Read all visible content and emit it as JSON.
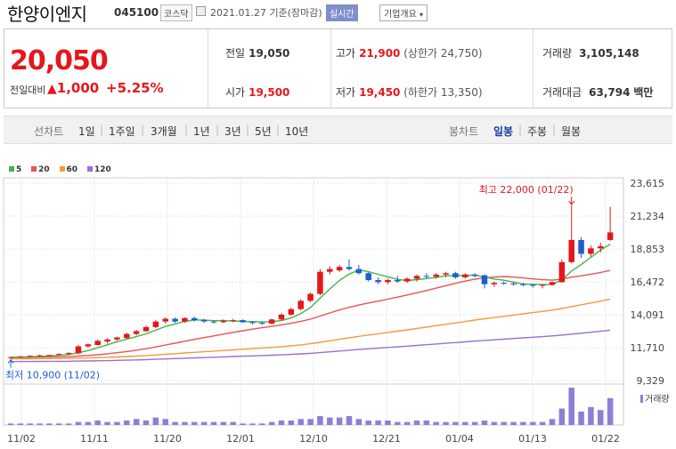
{
  "header": {
    "name": "한양이엔지",
    "code": "045100",
    "market": "코스닥",
    "date": "2021.01.27 기준(장마감)",
    "realtime": "실시간",
    "company_info": "기업개요"
  },
  "quote": {
    "price": "20,050",
    "change_label": "전일대비",
    "change_value": "1,000",
    "change_pct": "+5.25%",
    "prev_close_label": "전일",
    "prev_close": "19,050",
    "open_label": "시가",
    "open": "19,500",
    "high_label": "고가",
    "high": "21,900",
    "upper_limit": "(상한가 24,750)",
    "low_label": "저가",
    "low": "19,450",
    "lower_limit": "(하한가 13,350)",
    "volume_label": "거래량",
    "volume": "3,105,148",
    "amount_label": "거래대금",
    "amount": "63,794",
    "amount_unit": "백만"
  },
  "period_tabs": {
    "label": "선차트",
    "items": [
      "1일",
      "1주일",
      "3개월",
      "1년",
      "3년",
      "5년",
      "10년"
    ],
    "candle_label": "봉차트",
    "candle_items": [
      "일봉",
      "주봉",
      "월봉"
    ],
    "selected": "일봉"
  },
  "colors": {
    "up": "#e4171c",
    "down": "#1a5fd1",
    "ma5": "#43b543",
    "ma20": "#e85353",
    "ma60": "#f29a3a",
    "ma120": "#9a6fd0",
    "volume": "#8c7fd6"
  },
  "chart_data": {
    "type": "candlestick",
    "ma_legend": [
      "5",
      "20",
      "60",
      "120"
    ],
    "y_ticks": [
      "23,615",
      "21,234",
      "18,853",
      "16,472",
      "14,091",
      "11,710",
      "9,329"
    ],
    "ylim": [
      9329,
      23615
    ],
    "x_ticks": [
      "11/02",
      "11/11",
      "11/20",
      "12/01",
      "12/10",
      "12/21",
      "01/04",
      "01/13",
      "01/22"
    ],
    "max_annotation": "최고 22,000 (01/22)",
    "min_annotation": "최저 10,900 (11/02)",
    "volume_label": "거래량",
    "candles": [
      [
        11000,
        11050,
        10900,
        11020
      ],
      [
        11020,
        11100,
        10980,
        11080
      ],
      [
        11080,
        11150,
        11050,
        11120
      ],
      [
        11120,
        11200,
        11080,
        11150
      ],
      [
        11150,
        11200,
        11100,
        11180
      ],
      [
        11180,
        11300,
        11150,
        11250
      ],
      [
        11250,
        11380,
        11200,
        11320
      ],
      [
        11300,
        11900,
        11250,
        11800
      ],
      [
        11800,
        12000,
        11700,
        11950
      ],
      [
        11900,
        12300,
        11850,
        12200
      ],
      [
        12150,
        12400,
        12000,
        12300
      ],
      [
        12300,
        12500,
        12200,
        12450
      ],
      [
        12400,
        12800,
        12350,
        12700
      ],
      [
        12700,
        13000,
        12600,
        12900
      ],
      [
        12900,
        13300,
        12850,
        13200
      ],
      [
        13200,
        13700,
        13100,
        13600
      ],
      [
        13600,
        13900,
        13450,
        13800
      ],
      [
        13800,
        13900,
        13500,
        13600
      ],
      [
        13600,
        13900,
        13500,
        13850
      ],
      [
        13850,
        13950,
        13600,
        13700
      ],
      [
        13700,
        13800,
        13500,
        13600
      ],
      [
        13600,
        13700,
        13450,
        13550
      ],
      [
        13550,
        13750,
        13500,
        13650
      ],
      [
        13650,
        13800,
        13550,
        13700
      ],
      [
        13700,
        13750,
        13500,
        13550
      ],
      [
        13550,
        13650,
        13400,
        13500
      ],
      [
        13500,
        13600,
        13350,
        13450
      ],
      [
        13450,
        13800,
        13400,
        13750
      ],
      [
        13750,
        14200,
        13700,
        14100
      ],
      [
        14100,
        14600,
        14000,
        14500
      ],
      [
        14500,
        15200,
        14400,
        15100
      ],
      [
        15100,
        15700,
        15000,
        15600
      ],
      [
        15600,
        17400,
        15500,
        17200
      ],
      [
        17200,
        17600,
        17000,
        17400
      ],
      [
        17300,
        17700,
        17200,
        17550
      ],
      [
        17550,
        18100,
        17300,
        17400
      ],
      [
        17400,
        17700,
        17000,
        17100
      ],
      [
        17100,
        17200,
        16500,
        16600
      ],
      [
        16600,
        16800,
        16300,
        16450
      ],
      [
        16450,
        16700,
        16300,
        16600
      ],
      [
        16600,
        16900,
        16400,
        16500
      ],
      [
        16500,
        16800,
        16400,
        16700
      ],
      [
        16700,
        17000,
        16500,
        16900
      ],
      [
        16900,
        17100,
        16700,
        16850
      ],
      [
        16850,
        17100,
        16700,
        17000
      ],
      [
        17000,
        17200,
        16800,
        17100
      ],
      [
        17100,
        17200,
        16700,
        16800
      ],
      [
        16800,
        17100,
        16700,
        17000
      ],
      [
        17000,
        17100,
        16800,
        16900
      ],
      [
        16950,
        17000,
        16000,
        16300
      ],
      [
        16300,
        16500,
        16100,
        16400
      ],
      [
        16400,
        16500,
        16250,
        16350
      ],
      [
        16350,
        16450,
        16200,
        16300
      ],
      [
        16300,
        16400,
        16150,
        16250
      ],
      [
        16250,
        16350,
        16050,
        16200
      ],
      [
        16200,
        16300,
        16000,
        16250
      ],
      [
        16250,
        16500,
        16200,
        16450
      ],
      [
        16450,
        18100,
        16400,
        17900
      ],
      [
        17900,
        22000,
        17800,
        19500
      ],
      [
        19500,
        19700,
        18200,
        18500
      ],
      [
        18500,
        19100,
        18300,
        18900
      ],
      [
        18900,
        19300,
        18600,
        19050
      ],
      [
        19500,
        21900,
        19450,
        20050
      ]
    ],
    "volumes": [
      1,
      1,
      1,
      1,
      1,
      1,
      1,
      2,
      2,
      3,
      2,
      2,
      3,
      4,
      3,
      5,
      4,
      2,
      2,
      2,
      2,
      2,
      2,
      2,
      1,
      1,
      1,
      2,
      3,
      3,
      4,
      4,
      6,
      5,
      5,
      6,
      4,
      3,
      3,
      3,
      2,
      2,
      3,
      3,
      2,
      2,
      2,
      2,
      2,
      3,
      2,
      2,
      2,
      2,
      2,
      2,
      4,
      11,
      25,
      9,
      12,
      10,
      18
    ]
  }
}
